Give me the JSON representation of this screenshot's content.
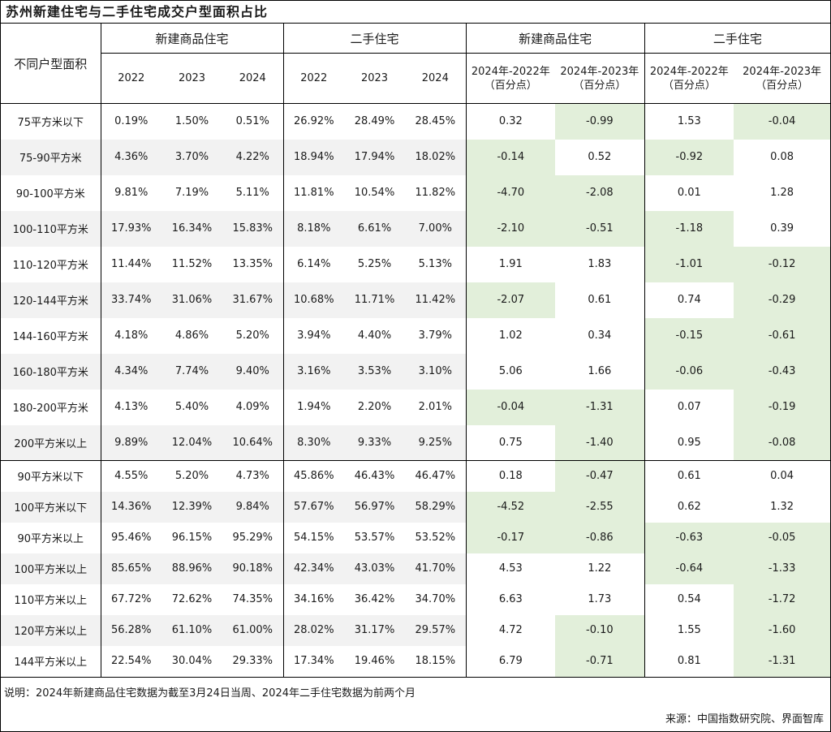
{
  "title": "苏州新建住宅与二手住宅成交户型面积占比",
  "header": {
    "row_label": "不同户型面积",
    "group_new": "新建商品住宅",
    "group_second": "二手住宅",
    "group_new_diff": "新建商品住宅",
    "group_second_diff": "二手住宅",
    "years": [
      "2022",
      "2023",
      "2024"
    ],
    "diff_cols": [
      {
        "line1": "2024年-2022年",
        "line2": "（百分点）"
      },
      {
        "line1": "2024年-2023年",
        "line2": "（百分点）"
      }
    ]
  },
  "rows_group1": [
    {
      "label": "75平方米以下",
      "new": [
        "0.19%",
        "1.50%",
        "0.51%"
      ],
      "second": [
        "26.92%",
        "28.49%",
        "28.45%"
      ],
      "new_diff": [
        "0.32",
        "-0.99"
      ],
      "second_diff": [
        "1.53",
        "-0.04"
      ]
    },
    {
      "label": "75-90平方米",
      "new": [
        "4.36%",
        "3.70%",
        "4.22%"
      ],
      "second": [
        "18.94%",
        "17.94%",
        "18.02%"
      ],
      "new_diff": [
        "-0.14",
        "0.52"
      ],
      "second_diff": [
        "-0.92",
        "0.08"
      ]
    },
    {
      "label": "90-100平方米",
      "new": [
        "9.81%",
        "7.19%",
        "5.11%"
      ],
      "second": [
        "11.81%",
        "10.54%",
        "11.82%"
      ],
      "new_diff": [
        "-4.70",
        "-2.08"
      ],
      "second_diff": [
        "0.01",
        "1.28"
      ]
    },
    {
      "label": "100-110平方米",
      "new": [
        "17.93%",
        "16.34%",
        "15.83%"
      ],
      "second": [
        "8.18%",
        "6.61%",
        "7.00%"
      ],
      "new_diff": [
        "-2.10",
        "-0.51"
      ],
      "second_diff": [
        "-1.18",
        "0.39"
      ]
    },
    {
      "label": "110-120平方米",
      "new": [
        "11.44%",
        "11.52%",
        "13.35%"
      ],
      "second": [
        "6.14%",
        "5.25%",
        "5.13%"
      ],
      "new_diff": [
        "1.91",
        "1.83"
      ],
      "second_diff": [
        "-1.01",
        "-0.12"
      ]
    },
    {
      "label": "120-144平方米",
      "new": [
        "33.74%",
        "31.06%",
        "31.67%"
      ],
      "second": [
        "10.68%",
        "11.71%",
        "11.42%"
      ],
      "new_diff": [
        "-2.07",
        "0.61"
      ],
      "second_diff": [
        "0.74",
        "-0.29"
      ]
    },
    {
      "label": "144-160平方米",
      "new": [
        "4.18%",
        "4.86%",
        "5.20%"
      ],
      "second": [
        "3.94%",
        "4.40%",
        "3.79%"
      ],
      "new_diff": [
        "1.02",
        "0.34"
      ],
      "second_diff": [
        "-0.15",
        "-0.61"
      ]
    },
    {
      "label": "160-180平方米",
      "new": [
        "4.34%",
        "7.74%",
        "9.40%"
      ],
      "second": [
        "3.16%",
        "3.53%",
        "3.10%"
      ],
      "new_diff": [
        "5.06",
        "1.66"
      ],
      "second_diff": [
        "-0.06",
        "-0.43"
      ]
    },
    {
      "label": "180-200平方米",
      "new": [
        "4.13%",
        "5.40%",
        "4.09%"
      ],
      "second": [
        "1.94%",
        "2.20%",
        "2.01%"
      ],
      "new_diff": [
        "-0.04",
        "-1.31"
      ],
      "second_diff": [
        "0.07",
        "-0.19"
      ]
    },
    {
      "label": "200平方米以上",
      "new": [
        "9.89%",
        "12.04%",
        "10.64%"
      ],
      "second": [
        "8.30%",
        "9.33%",
        "9.25%"
      ],
      "new_diff": [
        "0.75",
        "-1.40"
      ],
      "second_diff": [
        "0.95",
        "-0.08"
      ]
    }
  ],
  "rows_group2": [
    {
      "label": "90平方米以下",
      "new": [
        "4.55%",
        "5.20%",
        "4.73%"
      ],
      "second": [
        "45.86%",
        "46.43%",
        "46.47%"
      ],
      "new_diff": [
        "0.18",
        "-0.47"
      ],
      "second_diff": [
        "0.61",
        "0.04"
      ]
    },
    {
      "label": "100平方米以下",
      "new": [
        "14.36%",
        "12.39%",
        "9.84%"
      ],
      "second": [
        "57.67%",
        "56.97%",
        "58.29%"
      ],
      "new_diff": [
        "-4.52",
        "-2.55"
      ],
      "second_diff": [
        "0.62",
        "1.32"
      ]
    },
    {
      "label": "90平方米以上",
      "new": [
        "95.46%",
        "96.15%",
        "95.29%"
      ],
      "second": [
        "54.15%",
        "53.57%",
        "53.52%"
      ],
      "new_diff": [
        "-0.17",
        "-0.86"
      ],
      "second_diff": [
        "-0.63",
        "-0.05"
      ]
    },
    {
      "label": "100平方米以上",
      "new": [
        "85.65%",
        "88.96%",
        "90.18%"
      ],
      "second": [
        "42.34%",
        "43.03%",
        "41.70%"
      ],
      "new_diff": [
        "4.53",
        "1.22"
      ],
      "second_diff": [
        "-0.64",
        "-1.33"
      ]
    },
    {
      "label": "110平方米以上",
      "new": [
        "67.72%",
        "72.62%",
        "74.35%"
      ],
      "second": [
        "34.16%",
        "36.42%",
        "34.70%"
      ],
      "new_diff": [
        "6.63",
        "1.73"
      ],
      "second_diff": [
        "0.54",
        "-1.72"
      ]
    },
    {
      "label": "120平方米以上",
      "new": [
        "56.28%",
        "61.10%",
        "61.00%"
      ],
      "second": [
        "28.02%",
        "31.17%",
        "29.57%"
      ],
      "new_diff": [
        "4.72",
        "-0.10"
      ],
      "second_diff": [
        "1.55",
        "-1.60"
      ]
    },
    {
      "label": "144平方米以上",
      "new": [
        "22.54%",
        "30.04%",
        "29.33%"
      ],
      "second": [
        "17.34%",
        "19.46%",
        "18.15%"
      ],
      "new_diff": [
        "6.79",
        "-0.71"
      ],
      "second_diff": [
        "0.81",
        "-1.31"
      ]
    }
  ],
  "colors": {
    "negative_highlight": "#e2efda",
    "stripe": "#f2f2f2"
  },
  "footer": {
    "note": "说明：2024年新建商品住宅数据为截至3月24日当周、2024年二手住宅数据为前两个月",
    "source": "来源：中国指数研究院、界面智库"
  }
}
